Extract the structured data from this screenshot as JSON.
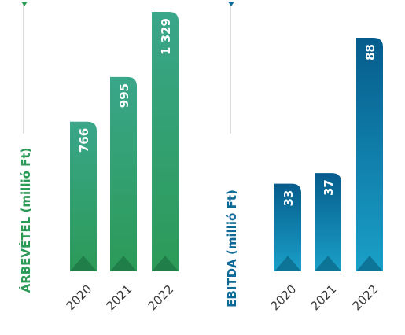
{
  "chart_data": [
    {
      "type": "bar",
      "ylabel": "ÁRBEVÉTEL (millió Ft)",
      "categories": [
        "2020",
        "2021",
        "2022"
      ],
      "values": [
        766,
        995,
        1329
      ],
      "value_labels": [
        "766",
        "995",
        "1 329"
      ],
      "ylim": [
        0,
        1329
      ],
      "color_bottom": "#2c9a57",
      "color_top": "#3aa68a",
      "title_color": "#2c9a57",
      "accent_color": "#1f7a45"
    },
    {
      "type": "bar",
      "ylabel": "EBITDA (millió Ft)",
      "categories": [
        "2020",
        "2021",
        "2022"
      ],
      "values": [
        33,
        37,
        88
      ],
      "value_labels": [
        "33",
        "37",
        "88"
      ],
      "ylim": [
        0,
        88
      ],
      "color_bottom": "#1aa0c8",
      "color_top": "#065c8c",
      "title_color": "#0d6a97",
      "accent_color": "#0c6d8e"
    }
  ]
}
